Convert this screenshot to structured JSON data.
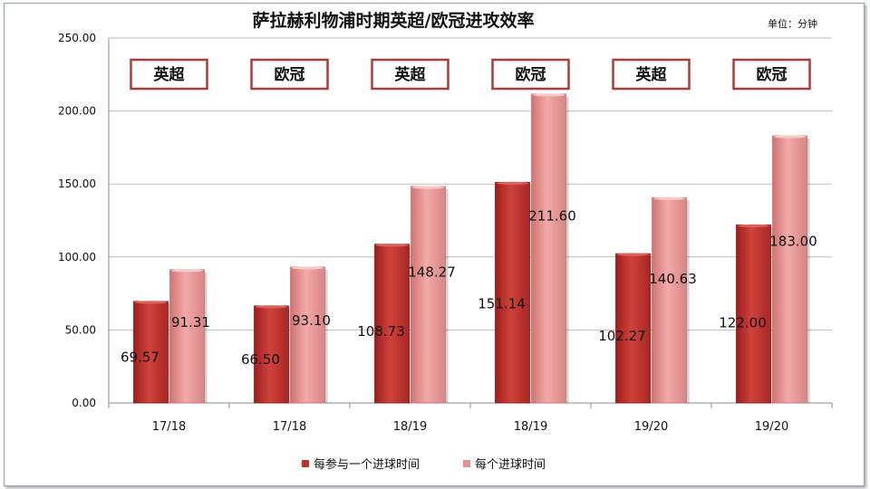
{
  "chart_data": {
    "type": "bar",
    "title": "萨拉赫利物浦时期英超/欧冠进攻效率",
    "unit_label": "单位：分钟",
    "categories": [
      "17/18",
      "17/18",
      "18/19",
      "18/19",
      "19/20",
      "19/20"
    ],
    "competitions": [
      "英超",
      "欧冠",
      "英超",
      "欧冠",
      "英超",
      "欧冠"
    ],
    "series": [
      {
        "name": "每参与一个进球时间",
        "values": [
          69.57,
          66.5,
          108.73,
          151.14,
          102.27,
          122.0
        ],
        "labels": [
          "69.57",
          "66.50",
          "108.73",
          "151.14",
          "102.27",
          "122.00"
        ],
        "color": "#c0302c"
      },
      {
        "name": "每个进球时间",
        "values": [
          91.31,
          93.1,
          148.27,
          211.6,
          140.63,
          183.0
        ],
        "labels": [
          "91.31",
          "93.10",
          "148.27",
          "211.60",
          "140.63",
          "183.00"
        ],
        "color": "#e4908e"
      }
    ],
    "ylim": [
      0,
      250
    ],
    "yticks": [
      "0.00",
      "50.00",
      "100.00",
      "150.00",
      "200.00",
      "250.00"
    ],
    "grid": true,
    "legend_position": "bottom"
  }
}
